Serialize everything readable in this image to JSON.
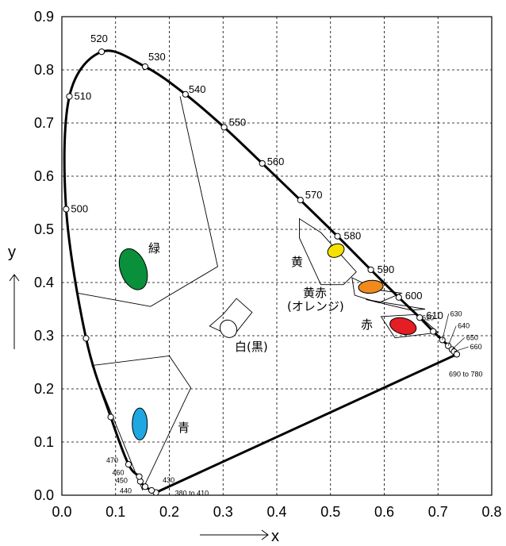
{
  "chart_data": {
    "type": "scatter",
    "title": "",
    "xlabel": "x",
    "ylabel": "y",
    "xlim": [
      0.0,
      0.8
    ],
    "ylim": [
      0.0,
      0.9
    ],
    "grid": true,
    "x_ticks": [
      "0.0",
      "0.1",
      "0.2",
      "0.3",
      "0.4",
      "0.5",
      "0.6",
      "0.7",
      "0.8"
    ],
    "y_ticks": [
      "0.0",
      "0.1",
      "0.2",
      "0.3",
      "0.4",
      "0.5",
      "0.6",
      "0.7",
      "0.8",
      "0.9"
    ],
    "spectral_locus": [
      {
        "label": "380 to 410",
        "x": 0.175,
        "y": 0.005,
        "label_style": "small"
      },
      {
        "label": "430",
        "x": 0.167,
        "y": 0.009,
        "label_style": "small"
      },
      {
        "label": "440",
        "x": 0.155,
        "y": 0.016,
        "label_style": "small"
      },
      {
        "label": "450",
        "x": 0.146,
        "y": 0.026,
        "label_style": "small"
      },
      {
        "label": "460",
        "x": 0.144,
        "y": 0.035,
        "label_style": "small"
      },
      {
        "label": "470",
        "x": 0.124,
        "y": 0.058,
        "label_style": "small"
      },
      {
        "label": "",
        "x": 0.091,
        "y": 0.147
      },
      {
        "label": "",
        "x": 0.045,
        "y": 0.295
      },
      {
        "label": "500",
        "x": 0.008,
        "y": 0.538
      },
      {
        "label": "510",
        "x": 0.014,
        "y": 0.75
      },
      {
        "label": "520",
        "x": 0.074,
        "y": 0.834
      },
      {
        "label": "530",
        "x": 0.155,
        "y": 0.806
      },
      {
        "label": "540",
        "x": 0.23,
        "y": 0.754
      },
      {
        "label": "550",
        "x": 0.302,
        "y": 0.692
      },
      {
        "label": "560",
        "x": 0.373,
        "y": 0.624
      },
      {
        "label": "570",
        "x": 0.444,
        "y": 0.555
      },
      {
        "label": "580",
        "x": 0.513,
        "y": 0.487
      },
      {
        "label": "590",
        "x": 0.575,
        "y": 0.424
      },
      {
        "label": "600",
        "x": 0.627,
        "y": 0.372
      },
      {
        "label": "610",
        "x": 0.666,
        "y": 0.334
      },
      {
        "label": "620",
        "x": 0.691,
        "y": 0.308,
        "label_style": "small"
      },
      {
        "label": "630",
        "x": 0.708,
        "y": 0.292,
        "label_style": "small"
      },
      {
        "label": "640",
        "x": 0.719,
        "y": 0.281,
        "label_style": "small"
      },
      {
        "label": "650",
        "x": 0.726,
        "y": 0.274,
        "label_style": "small"
      },
      {
        "label": "660",
        "x": 0.73,
        "y": 0.27,
        "label_style": "small"
      },
      {
        "label": "690 to 780",
        "x": 0.735,
        "y": 0.265,
        "label_style": "small"
      }
    ],
    "color_regions": [
      {
        "name": "緑",
        "fill": "#0a8f3a",
        "x": 0.133,
        "y": 0.425,
        "rx": 0.024,
        "ry": 0.04,
        "rotation": -20
      },
      {
        "name": "青",
        "fill": "#1ea7e0",
        "x": 0.145,
        "y": 0.134,
        "rx": 0.014,
        "ry": 0.03,
        "rotation": 0
      },
      {
        "name": "白(黒)",
        "fill": "#ffffff",
        "x": 0.31,
        "y": 0.313,
        "rx": 0.015,
        "ry": 0.017,
        "rotation": -35
      },
      {
        "name": "黄",
        "fill": "#f5e100",
        "x": 0.51,
        "y": 0.46,
        "rx": 0.016,
        "ry": 0.012,
        "rotation": -25
      },
      {
        "name": "黄赤\n(オレンジ)",
        "fill": "#f08a1c",
        "x": 0.575,
        "y": 0.392,
        "rx": 0.023,
        "ry": 0.012,
        "rotation": -5
      },
      {
        "name": "赤",
        "fill": "#e31e24",
        "x": 0.635,
        "y": 0.318,
        "rx": 0.025,
        "ry": 0.015,
        "rotation": 15
      }
    ]
  },
  "labels": {
    "green": "緑",
    "blue": "青",
    "white": "白(黒)",
    "yellow": "黄",
    "orange_1": "黄赤",
    "orange_2": "(オレンジ)",
    "red": "赤"
  }
}
